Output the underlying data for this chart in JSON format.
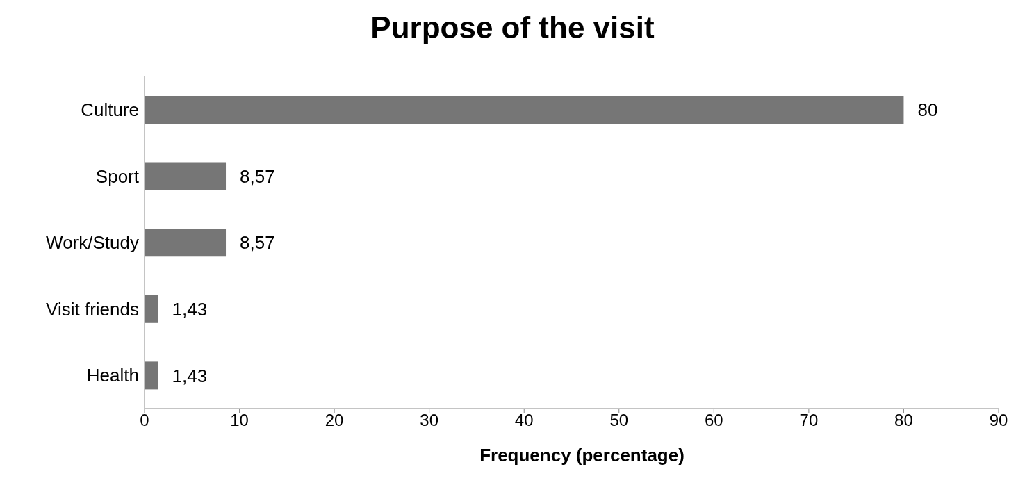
{
  "chart_data": {
    "type": "bar",
    "orientation": "horizontal",
    "title": "Purpose of the visit",
    "xlabel": "Frequency (percentage)",
    "categories": [
      "Culture",
      "Sport",
      "Work/Study",
      "Visit friends",
      "Health"
    ],
    "values": [
      80,
      8.57,
      8.57,
      1.43,
      1.43
    ],
    "value_labels": [
      "80",
      "8,57",
      "8,57",
      "1,43",
      "1,43"
    ],
    "color": "#767676",
    "xlim": [
      0,
      90
    ],
    "xticks": [
      0,
      10,
      20,
      30,
      40,
      50,
      60,
      70,
      80,
      90
    ],
    "grid": false,
    "legend": false
  }
}
